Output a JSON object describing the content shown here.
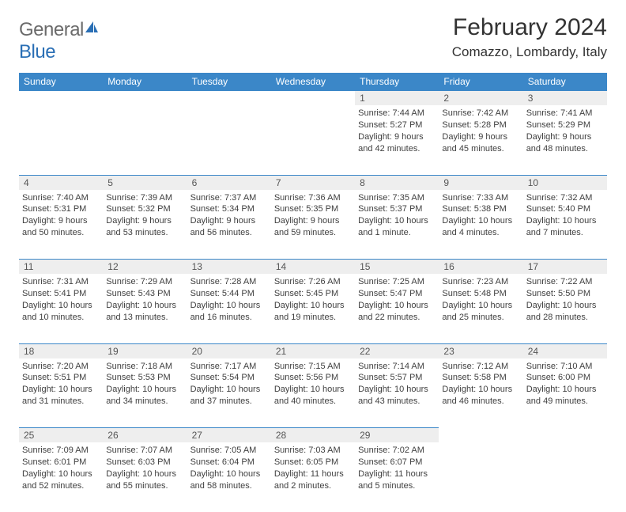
{
  "brand": {
    "name_a": "General",
    "name_b": "Blue"
  },
  "title": "February 2024",
  "subtitle": "Comazzo, Lombardy, Italy",
  "colors": {
    "header_bg": "#3b87c8",
    "header_text": "#ffffff",
    "daynum_bg": "#eeeeee",
    "border": "#3b87c8",
    "text": "#333333",
    "detail_text": "#404040"
  },
  "day_headers": [
    "Sunday",
    "Monday",
    "Tuesday",
    "Wednesday",
    "Thursday",
    "Friday",
    "Saturday"
  ],
  "weeks": [
    [
      null,
      null,
      null,
      null,
      {
        "n": "1",
        "sunrise": "7:44 AM",
        "sunset": "5:27 PM",
        "daylight_a": "Daylight: 9 hours",
        "daylight_b": "and 42 minutes."
      },
      {
        "n": "2",
        "sunrise": "7:42 AM",
        "sunset": "5:28 PM",
        "daylight_a": "Daylight: 9 hours",
        "daylight_b": "and 45 minutes."
      },
      {
        "n": "3",
        "sunrise": "7:41 AM",
        "sunset": "5:29 PM",
        "daylight_a": "Daylight: 9 hours",
        "daylight_b": "and 48 minutes."
      }
    ],
    [
      {
        "n": "4",
        "sunrise": "7:40 AM",
        "sunset": "5:31 PM",
        "daylight_a": "Daylight: 9 hours",
        "daylight_b": "and 50 minutes."
      },
      {
        "n": "5",
        "sunrise": "7:39 AM",
        "sunset": "5:32 PM",
        "daylight_a": "Daylight: 9 hours",
        "daylight_b": "and 53 minutes."
      },
      {
        "n": "6",
        "sunrise": "7:37 AM",
        "sunset": "5:34 PM",
        "daylight_a": "Daylight: 9 hours",
        "daylight_b": "and 56 minutes."
      },
      {
        "n": "7",
        "sunrise": "7:36 AM",
        "sunset": "5:35 PM",
        "daylight_a": "Daylight: 9 hours",
        "daylight_b": "and 59 minutes."
      },
      {
        "n": "8",
        "sunrise": "7:35 AM",
        "sunset": "5:37 PM",
        "daylight_a": "Daylight: 10 hours",
        "daylight_b": "and 1 minute."
      },
      {
        "n": "9",
        "sunrise": "7:33 AM",
        "sunset": "5:38 PM",
        "daylight_a": "Daylight: 10 hours",
        "daylight_b": "and 4 minutes."
      },
      {
        "n": "10",
        "sunrise": "7:32 AM",
        "sunset": "5:40 PM",
        "daylight_a": "Daylight: 10 hours",
        "daylight_b": "and 7 minutes."
      }
    ],
    [
      {
        "n": "11",
        "sunrise": "7:31 AM",
        "sunset": "5:41 PM",
        "daylight_a": "Daylight: 10 hours",
        "daylight_b": "and 10 minutes."
      },
      {
        "n": "12",
        "sunrise": "7:29 AM",
        "sunset": "5:43 PM",
        "daylight_a": "Daylight: 10 hours",
        "daylight_b": "and 13 minutes."
      },
      {
        "n": "13",
        "sunrise": "7:28 AM",
        "sunset": "5:44 PM",
        "daylight_a": "Daylight: 10 hours",
        "daylight_b": "and 16 minutes."
      },
      {
        "n": "14",
        "sunrise": "7:26 AM",
        "sunset": "5:45 PM",
        "daylight_a": "Daylight: 10 hours",
        "daylight_b": "and 19 minutes."
      },
      {
        "n": "15",
        "sunrise": "7:25 AM",
        "sunset": "5:47 PM",
        "daylight_a": "Daylight: 10 hours",
        "daylight_b": "and 22 minutes."
      },
      {
        "n": "16",
        "sunrise": "7:23 AM",
        "sunset": "5:48 PM",
        "daylight_a": "Daylight: 10 hours",
        "daylight_b": "and 25 minutes."
      },
      {
        "n": "17",
        "sunrise": "7:22 AM",
        "sunset": "5:50 PM",
        "daylight_a": "Daylight: 10 hours",
        "daylight_b": "and 28 minutes."
      }
    ],
    [
      {
        "n": "18",
        "sunrise": "7:20 AM",
        "sunset": "5:51 PM",
        "daylight_a": "Daylight: 10 hours",
        "daylight_b": "and 31 minutes."
      },
      {
        "n": "19",
        "sunrise": "7:18 AM",
        "sunset": "5:53 PM",
        "daylight_a": "Daylight: 10 hours",
        "daylight_b": "and 34 minutes."
      },
      {
        "n": "20",
        "sunrise": "7:17 AM",
        "sunset": "5:54 PM",
        "daylight_a": "Daylight: 10 hours",
        "daylight_b": "and 37 minutes."
      },
      {
        "n": "21",
        "sunrise": "7:15 AM",
        "sunset": "5:56 PM",
        "daylight_a": "Daylight: 10 hours",
        "daylight_b": "and 40 minutes."
      },
      {
        "n": "22",
        "sunrise": "7:14 AM",
        "sunset": "5:57 PM",
        "daylight_a": "Daylight: 10 hours",
        "daylight_b": "and 43 minutes."
      },
      {
        "n": "23",
        "sunrise": "7:12 AM",
        "sunset": "5:58 PM",
        "daylight_a": "Daylight: 10 hours",
        "daylight_b": "and 46 minutes."
      },
      {
        "n": "24",
        "sunrise": "7:10 AM",
        "sunset": "6:00 PM",
        "daylight_a": "Daylight: 10 hours",
        "daylight_b": "and 49 minutes."
      }
    ],
    [
      {
        "n": "25",
        "sunrise": "7:09 AM",
        "sunset": "6:01 PM",
        "daylight_a": "Daylight: 10 hours",
        "daylight_b": "and 52 minutes."
      },
      {
        "n": "26",
        "sunrise": "7:07 AM",
        "sunset": "6:03 PM",
        "daylight_a": "Daylight: 10 hours",
        "daylight_b": "and 55 minutes."
      },
      {
        "n": "27",
        "sunrise": "7:05 AM",
        "sunset": "6:04 PM",
        "daylight_a": "Daylight: 10 hours",
        "daylight_b": "and 58 minutes."
      },
      {
        "n": "28",
        "sunrise": "7:03 AM",
        "sunset": "6:05 PM",
        "daylight_a": "Daylight: 11 hours",
        "daylight_b": "and 2 minutes."
      },
      {
        "n": "29",
        "sunrise": "7:02 AM",
        "sunset": "6:07 PM",
        "daylight_a": "Daylight: 11 hours",
        "daylight_b": "and 5 minutes."
      },
      null,
      null
    ]
  ],
  "labels": {
    "sunrise_prefix": "Sunrise: ",
    "sunset_prefix": "Sunset: "
  }
}
